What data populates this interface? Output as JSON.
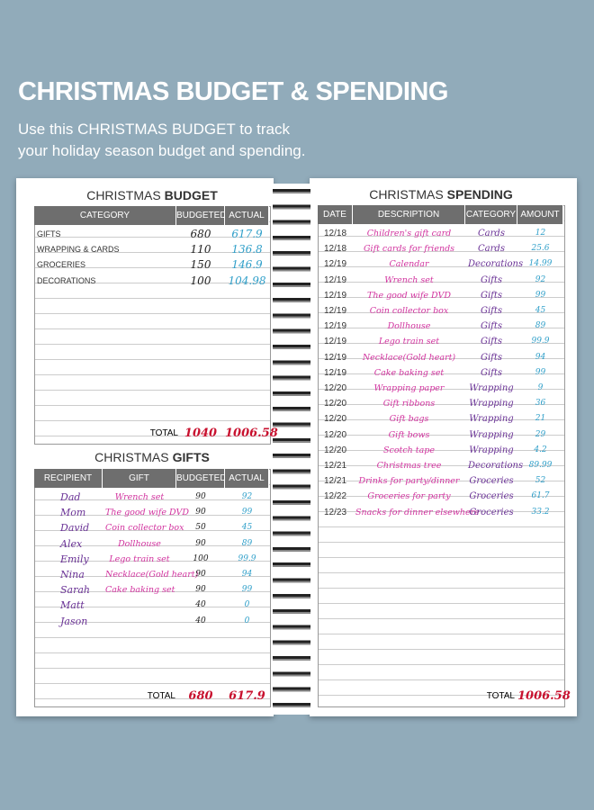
{
  "header": {
    "title": "CHRISTMAS BUDGET & SPENDING",
    "subtitle": "Use this CHRISTMAS BUDGET to track your holiday season budget and spending."
  },
  "budget": {
    "title_light": "CHRISTMAS",
    "title_bold": "BUDGET",
    "columns": [
      "CATEGORY",
      "BUDGETED",
      "ACTUAL"
    ],
    "rows": [
      [
        "GIFTS",
        680,
        617.9
      ],
      [
        "WRAPPING & CARDS",
        110,
        136.8
      ],
      [
        "GROCERIES",
        150,
        146.9
      ],
      [
        "DECORATIONS",
        100,
        104.98
      ]
    ],
    "total_label": "TOTAL",
    "total": [
      1040,
      1006.58
    ]
  },
  "gifts": {
    "title_light": "CHRISTMAS",
    "title_bold": "GIFTS",
    "columns": [
      "RECIPIENT",
      "GIFT",
      "BUDGETED",
      "ACTUAL"
    ],
    "rows": [
      {
        "recipient": "Dad",
        "gift": "Wrench set",
        "budgeted": 90,
        "actual": 92
      },
      {
        "recipient": "Mom",
        "gift": "The good wife DVD",
        "budgeted": 90,
        "actual": 99
      },
      {
        "recipient": "David",
        "gift": "Coin collector box",
        "budgeted": 50,
        "actual": 45
      },
      {
        "recipient": "Alex",
        "gift": "Dollhouse",
        "budgeted": 90,
        "actual": 89
      },
      {
        "recipient": "Emily",
        "gift": "Lego train set",
        "budgeted": 100,
        "actual": 99.9
      },
      {
        "recipient": "Nina",
        "gift": "Necklace(Gold heart)",
        "budgeted": 90,
        "actual": 94
      },
      {
        "recipient": "Sarah",
        "gift": "Cake baking set",
        "budgeted": 90,
        "actual": 99
      },
      {
        "recipient": "Matt",
        "budgeted": 40,
        "actual": 0
      },
      {
        "recipient": "Jason",
        "budgeted": 40,
        "actual": 0
      }
    ],
    "total_label": "TOTAL",
    "total": [
      680,
      617.9
    ]
  },
  "spending": {
    "title_light": "CHRISTMAS",
    "title_bold": "SPENDING",
    "columns": [
      "DATE",
      "DESCRIPTION",
      "CATEGORY",
      "AMOUNT"
    ],
    "rows": [
      [
        "12/18",
        "Children's gift card",
        "Cards",
        12
      ],
      [
        "12/18",
        "Gift cards for friends",
        "Cards",
        25.6
      ],
      [
        "12/19",
        "Calendar",
        "Decorations",
        14.99
      ],
      [
        "12/19",
        "Wrench set",
        "Gifts",
        92
      ],
      [
        "12/19",
        "The good wife DVD",
        "Gifts",
        99
      ],
      [
        "12/19",
        "Coin collector box",
        "Gifts",
        45
      ],
      [
        "12/19",
        "Dollhouse",
        "Gifts",
        89
      ],
      [
        "12/19",
        "Lego train set",
        "Gifts",
        99.9
      ],
      [
        "12/19",
        "Necklace(Gold heart)",
        "Gifts",
        94
      ],
      [
        "12/19",
        "Cake baking set",
        "Gifts",
        99
      ],
      [
        "12/20",
        "Wrapping paper",
        "Wrapping",
        9
      ],
      [
        "12/20",
        "Gift ribbons",
        "Wrapping",
        36
      ],
      [
        "12/20",
        "Gift bags",
        "Wrapping",
        21
      ],
      [
        "12/20",
        "Gift bows",
        "Wrapping",
        29
      ],
      [
        "12/20",
        "Scotch tape",
        "Wrapping",
        4.2
      ],
      [
        "12/21",
        "Christmas tree",
        "Decorations",
        89.99
      ],
      [
        "12/21",
        "Drinks for party/dinner",
        "Groceries",
        52
      ],
      [
        "12/22",
        "Groceries for party",
        "Groceries",
        61.7
      ],
      [
        "12/23",
        "Snacks for dinner elsewhere",
        "Groceries",
        33.2
      ]
    ],
    "total_label": "TOTAL",
    "total": 1006.58
  }
}
